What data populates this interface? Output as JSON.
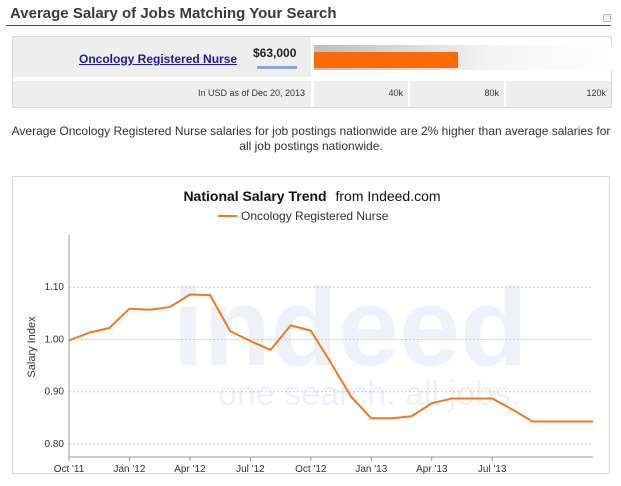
{
  "header": {
    "title": "Average Salary of Jobs Matching Your Search"
  },
  "salary": {
    "job_title": "Oncology Registered Nurse",
    "amount": "$63,000",
    "amount_value": 63000,
    "scale_max": 130000,
    "currency_note": "In USD as of Dec 20, 2013",
    "ticks": [
      "40k",
      "80k",
      "120k"
    ],
    "bar_color": "#ff6a00"
  },
  "comparison_text": "Average Oncology Registered Nurse salaries for job postings nationwide are 2% higher than average salaries for all job postings nationwide.",
  "chart_data": {
    "type": "line",
    "title_bold": "National Salary Trend",
    "title_rest": "from Indeed.com",
    "ylabel": "Salary Index",
    "ylim": [
      0.775,
      1.2
    ],
    "yticks": [
      0.8,
      0.9,
      1.0,
      1.1
    ],
    "ytick_labels": [
      "0.80",
      "0.90",
      "1.00",
      "1.10"
    ],
    "xticks": [
      "Oct '11",
      "Jan '12",
      "Apr '12",
      "Jul '12",
      "Oct '12",
      "Jan '13",
      "Apr '13",
      "Jul '13"
    ],
    "grid": true,
    "legend_position": "top-center",
    "watermark": {
      "brand": "indeed",
      "tagline": "one search. all jobs."
    },
    "series": [
      {
        "name": "Oncology Registered Nurse",
        "color": "#f07a1e",
        "x": [
          0,
          1,
          2,
          3,
          4,
          5,
          6,
          7,
          8,
          9,
          10,
          11,
          12,
          13,
          14,
          15,
          16,
          17,
          18,
          19,
          20,
          21,
          22,
          23,
          24,
          25,
          26
        ],
        "values": [
          0.998,
          1.013,
          1.022,
          1.059,
          1.057,
          1.062,
          1.086,
          1.085,
          1.016,
          0.997,
          0.98,
          1.027,
          1.017,
          0.955,
          0.89,
          0.849,
          0.849,
          0.853,
          0.878,
          0.887,
          0.887,
          0.887,
          0.866,
          0.843,
          0.843,
          0.843,
          0.843
        ]
      }
    ]
  }
}
